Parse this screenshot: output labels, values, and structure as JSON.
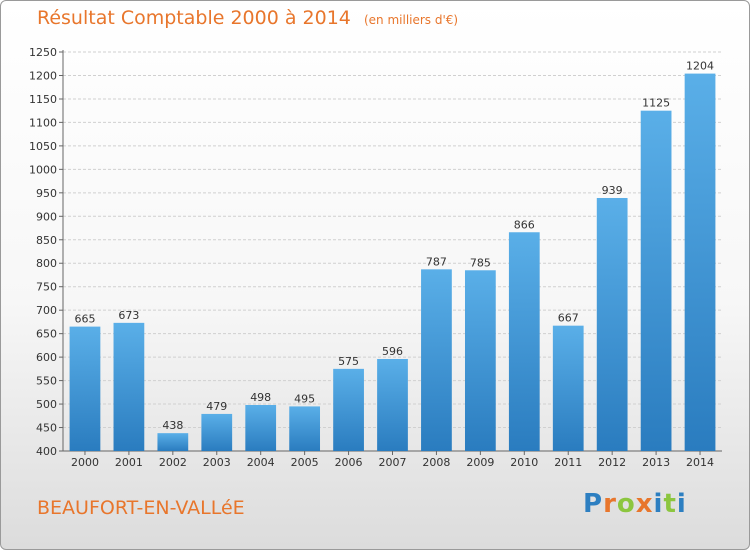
{
  "header": {
    "title": "Résultat Comptable 2000 à 2014",
    "subtitle": "(en milliers d'€)"
  },
  "footer": {
    "commune": "BEAUFORT-EN-VALLéE",
    "brand": {
      "letters": [
        "P",
        "r",
        "o",
        "x",
        "i",
        "t",
        "i"
      ],
      "colors": [
        "#2d7fc1",
        "#e8762c",
        "#8cc63f",
        "#e8762c",
        "#2d7fc1",
        "#8cc63f",
        "#2d7fc1"
      ]
    }
  },
  "colors": {
    "title": "#e8762c",
    "bar_light": "#5aafe8",
    "bar_dark": "#2a7cbf",
    "grid": "#d0d0d0"
  },
  "chart_data": {
    "type": "bar",
    "title": "Résultat Comptable 2000 à 2014",
    "subtitle": "(en milliers d'€)",
    "xlabel": "",
    "ylabel": "",
    "categories": [
      "2000",
      "2001",
      "2002",
      "2003",
      "2004",
      "2005",
      "2006",
      "2007",
      "2008",
      "2009",
      "2010",
      "2011",
      "2012",
      "2013",
      "2014"
    ],
    "values": [
      665,
      673,
      438,
      479,
      498,
      495,
      575,
      596,
      787,
      785,
      866,
      667,
      939,
      1125,
      1204
    ],
    "ylim": [
      400,
      1250
    ],
    "yticks": [
      400,
      450,
      500,
      550,
      600,
      650,
      700,
      750,
      800,
      850,
      900,
      950,
      1000,
      1050,
      1100,
      1150,
      1200,
      1250
    ],
    "grid": true,
    "legend": "none"
  }
}
